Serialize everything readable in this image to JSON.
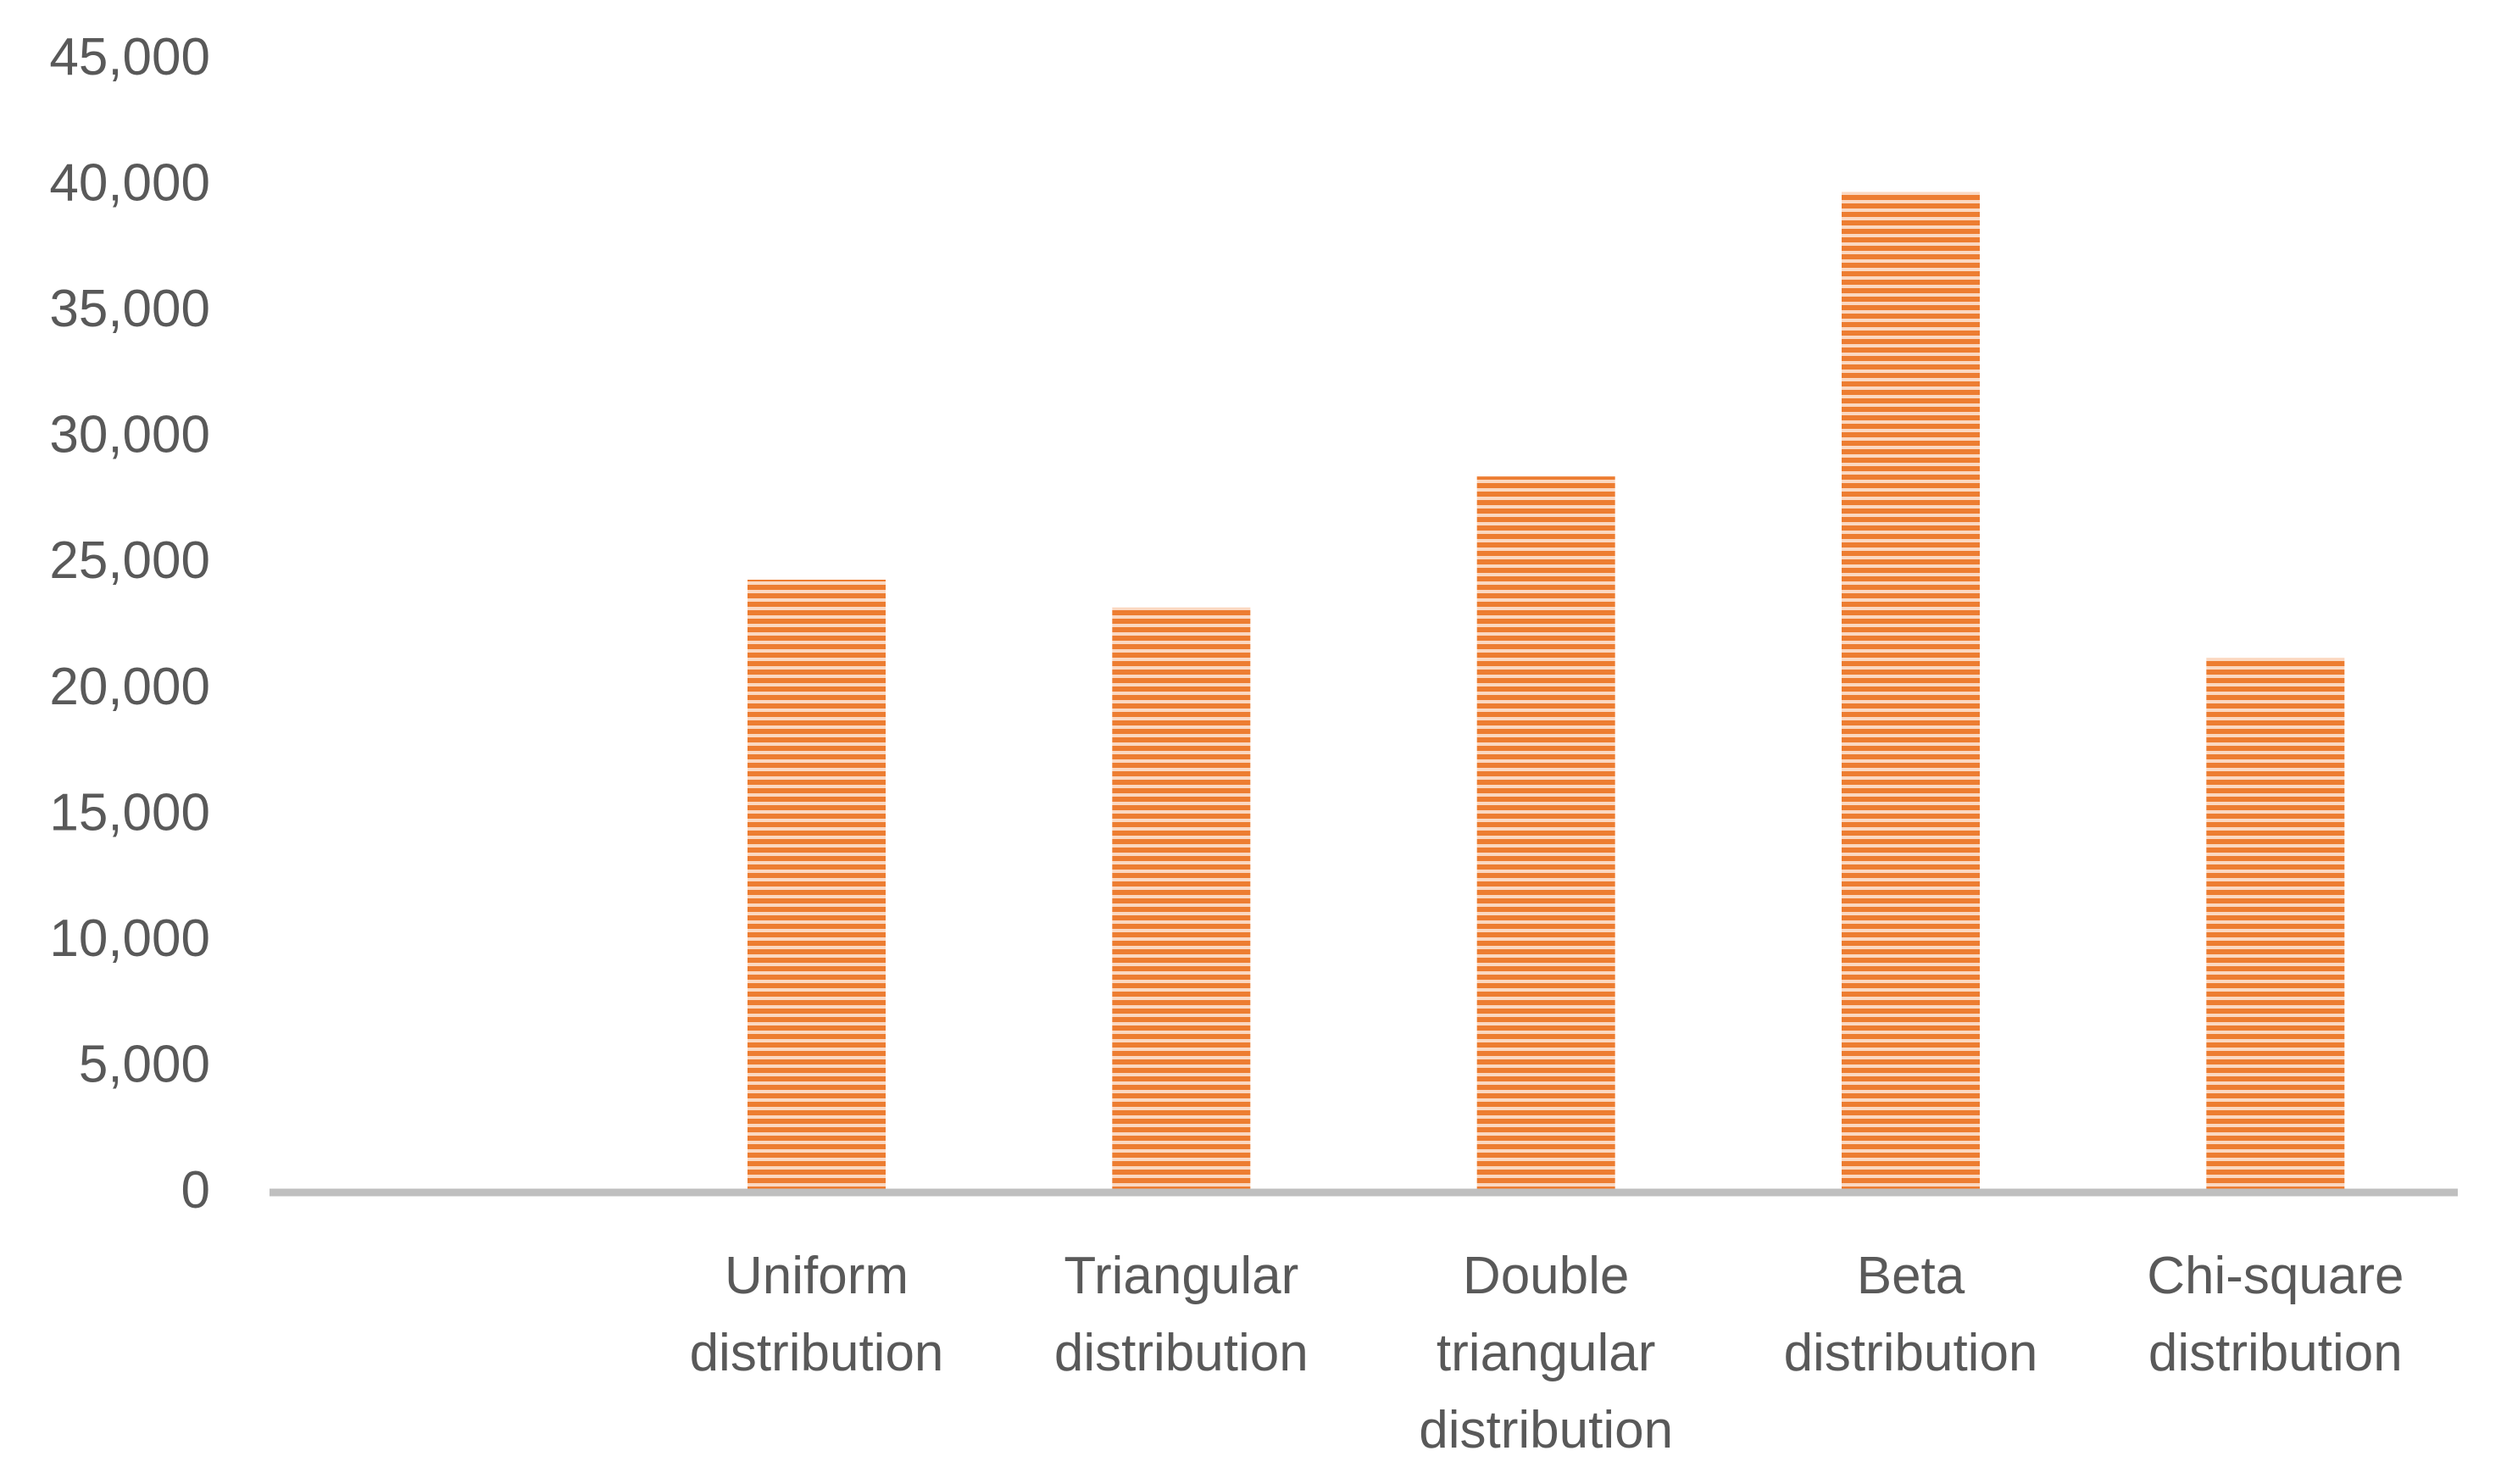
{
  "chart_data": {
    "type": "bar",
    "title": "",
    "xlabel": "",
    "ylabel": "",
    "ylim": [
      0,
      45000
    ],
    "y_ticks": [
      "0",
      "5,000",
      "10,000",
      "15,000",
      "20,000",
      "25,000",
      "30,000",
      "35,000",
      "40,000",
      "45,000"
    ],
    "grid": false,
    "legend": "none",
    "bar_fill": "horizontal-stripes",
    "categories": [
      "",
      "Uniform distribution",
      "Triangular distribution",
      "Double triangular distribution",
      "Beta distribution",
      "Chi-square distribution"
    ],
    "category_lines": [
      [],
      [
        "Uniform",
        "distribution"
      ],
      [
        "Triangular",
        "distribution"
      ],
      [
        "Double",
        "triangular",
        "distribution"
      ],
      [
        "Beta",
        "distribution"
      ],
      [
        "Chi-square",
        "distribution"
      ]
    ],
    "values": [
      0,
      24200,
      23100,
      28300,
      39600,
      21100
    ]
  },
  "colors": {
    "bar_stripe": "#ED7D31",
    "bar_gap": "#FBD8C1",
    "axis": "#BFBFBF",
    "text": "#595959",
    "background": "#FFFFFF"
  }
}
